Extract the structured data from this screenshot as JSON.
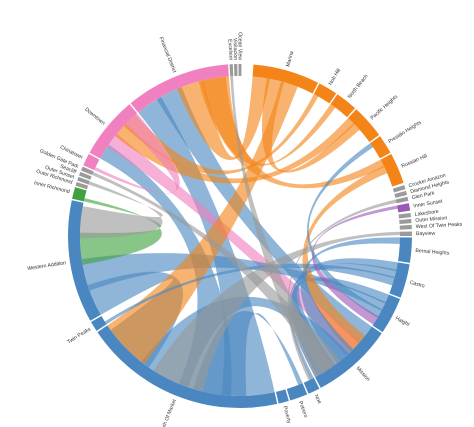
{
  "colors": {
    "blue": "#4a87c0",
    "orange": "#f48418",
    "pink": "#f080c0",
    "green": "#3fa23f",
    "purple": "#9b59b6",
    "gray": "#9a9a9a"
  },
  "segments": [
    {
      "label": "Marina",
      "color": "orange"
    },
    {
      "label": "Nob Hill",
      "color": "orange"
    },
    {
      "label": "North Beach",
      "color": "orange"
    },
    {
      "label": "Pacific Heights",
      "color": "orange"
    },
    {
      "label": "Presidio Heights",
      "color": "orange"
    },
    {
      "label": "Russian Hill",
      "color": "orange"
    },
    {
      "label": "Crocker Amazon",
      "color": "gray"
    },
    {
      "label": "Diamond Heights",
      "color": "gray"
    },
    {
      "label": "Glen Park",
      "color": "gray"
    },
    {
      "label": "Inner Sunset",
      "color": "purple"
    },
    {
      "label": "Lakeshore",
      "color": "gray"
    },
    {
      "label": "Outer Mission",
      "color": "gray"
    },
    {
      "label": "West Of Twin Peaks",
      "color": "gray"
    },
    {
      "label": "Bayview",
      "color": "gray"
    },
    {
      "label": "Bernal Heights",
      "color": "blue"
    },
    {
      "label": "Castro",
      "color": "blue"
    },
    {
      "label": "Haight",
      "color": "blue"
    },
    {
      "label": "Mission",
      "color": "blue"
    },
    {
      "label": "Noe",
      "color": "blue"
    },
    {
      "label": "Potrero",
      "color": "blue"
    },
    {
      "label": "Poverty",
      "color": "blue"
    },
    {
      "label": "South Of Market",
      "color": "blue"
    },
    {
      "label": "Twin Peaks",
      "color": "blue"
    },
    {
      "label": "Western Addition",
      "color": "blue"
    },
    {
      "label": "Inner Richmond",
      "color": "green"
    },
    {
      "label": "Outer Richmond",
      "color": "gray"
    },
    {
      "label": "Outer Sunset",
      "color": "gray"
    },
    {
      "label": "Seacliff",
      "color": "gray"
    },
    {
      "label": "Golden Gate Park",
      "color": "gray"
    },
    {
      "label": "Chinatown",
      "color": "pink"
    },
    {
      "label": "Downtown",
      "color": "pink"
    },
    {
      "label": "Financial District",
      "color": "pink"
    },
    {
      "label": "Excelsior",
      "color": "gray"
    },
    {
      "label": "Visitacion",
      "color": "gray"
    },
    {
      "label": "Ocean View",
      "color": "gray"
    }
  ],
  "ribbons": [
    {
      "from": "Financial District",
      "to": "South Of Market",
      "color": "blue"
    },
    {
      "from": "Financial District",
      "to": "Mission",
      "color": "blue"
    },
    {
      "from": "Financial District",
      "to": "Marina",
      "color": "orange"
    },
    {
      "from": "Financial District",
      "to": "Russian Hill",
      "color": "orange"
    },
    {
      "from": "Downtown",
      "to": "South Of Market",
      "color": "blue"
    },
    {
      "from": "Downtown",
      "to": "Mission",
      "color": "pink"
    },
    {
      "from": "Downtown",
      "to": "Pacific Heights",
      "color": "orange"
    },
    {
      "from": "Mission",
      "to": "South Of Market",
      "color": "blue"
    },
    {
      "from": "Mission",
      "to": "Castro",
      "color": "blue"
    },
    {
      "from": "Mission",
      "to": "Haight",
      "color": "blue"
    },
    {
      "from": "Western Addition",
      "to": "South Of Market",
      "color": "blue"
    },
    {
      "from": "Western Addition",
      "to": "Haight",
      "color": "blue"
    },
    {
      "from": "Marina",
      "to": "Pacific Heights",
      "color": "orange"
    },
    {
      "from": "Marina",
      "to": "South Of Market",
      "color": "orange"
    },
    {
      "from": "Nob Hill",
      "to": "Downtown",
      "color": "orange"
    },
    {
      "from": "North Beach",
      "to": "Financial District",
      "color": "orange"
    },
    {
      "from": "Russian Hill",
      "to": "Mission",
      "color": "orange"
    },
    {
      "from": "Castro",
      "to": "Noe",
      "color": "blue"
    },
    {
      "from": "Bernal Heights",
      "to": "Mission",
      "color": "blue"
    },
    {
      "from": "Inner Richmond",
      "to": "Western Addition",
      "color": "green"
    },
    {
      "from": "Chinatown",
      "to": "Downtown",
      "color": "pink"
    },
    {
      "from": "Twin Peaks",
      "to": "Castro",
      "color": "blue"
    },
    {
      "from": "Potrero",
      "to": "South Of Market",
      "color": "blue"
    },
    {
      "from": "Haight",
      "to": "Presidio Heights",
      "color": "blue"
    },
    {
      "from": "Golden Gate Park",
      "to": "Mission",
      "color": "gray"
    },
    {
      "from": "Inner Sunset",
      "to": "Haight",
      "color": "purple"
    },
    {
      "from": "Outer Sunset",
      "to": "Western Addition",
      "color": "gray"
    },
    {
      "from": "Glen Park",
      "to": "Noe",
      "color": "gray"
    },
    {
      "from": "Bayview",
      "to": "South Of Market",
      "color": "gray"
    },
    {
      "from": "Excelsior",
      "to": "Mission",
      "color": "gray"
    }
  ]
}
